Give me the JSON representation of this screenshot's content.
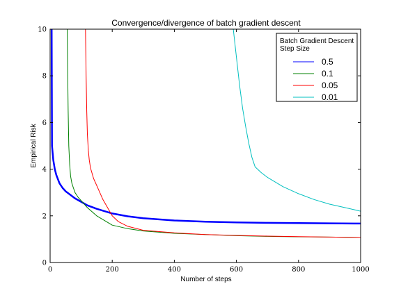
{
  "chart_data": {
    "type": "line",
    "title": "Convergence/divergence of batch gradient descent",
    "xlabel": "Number of steps",
    "ylabel": "Empirical Risk",
    "xlim": [
      0,
      1000
    ],
    "ylim": [
      0,
      10
    ],
    "x_ticks": [
      "0",
      "200",
      "400",
      "600",
      "800",
      "1000"
    ],
    "y_ticks": [
      "0",
      "2",
      "4",
      "6",
      "8",
      "10"
    ],
    "grid": false,
    "legend": {
      "title": "Batch Gradient Descent\nStep Size",
      "placement": "top-right"
    },
    "series": [
      {
        "name": "0.5",
        "color": "#0000ff",
        "x": [
          5,
          6,
          8,
          10,
          15,
          20,
          30,
          40,
          50,
          60,
          80,
          100,
          120,
          150,
          200,
          250,
          300,
          400,
          500,
          600,
          700,
          800,
          900,
          1000
        ],
        "y": [
          10,
          5.0,
          4.7,
          4.4,
          4.0,
          3.75,
          3.4,
          3.2,
          3.05,
          2.95,
          2.75,
          2.6,
          2.45,
          2.3,
          2.1,
          1.98,
          1.9,
          1.8,
          1.75,
          1.72,
          1.7,
          1.69,
          1.68,
          1.67
        ]
      },
      {
        "name": "0.1",
        "color": "#008000",
        "x": [
          55,
          58,
          60,
          63,
          66,
          70,
          75,
          80,
          90,
          100,
          120,
          150,
          200,
          250,
          300,
          400,
          500,
          600,
          700,
          800,
          900,
          1000
        ],
        "y": [
          10,
          6.5,
          5.0,
          4.2,
          3.7,
          3.4,
          3.2,
          3.0,
          2.8,
          2.65,
          2.35,
          2.0,
          1.6,
          1.45,
          1.35,
          1.25,
          1.2,
          1.15,
          1.12,
          1.1,
          1.09,
          1.07
        ]
      },
      {
        "name": "0.05",
        "color": "#ff0000",
        "x": [
          114,
          116,
          118,
          120,
          123,
          126,
          130,
          140,
          150,
          170,
          200,
          220,
          250,
          300,
          400,
          500,
          600,
          700,
          800,
          900,
          1000
        ],
        "y": [
          10,
          8.0,
          6.5,
          5.5,
          4.8,
          4.4,
          4.05,
          3.6,
          3.3,
          2.7,
          2.0,
          1.75,
          1.55,
          1.38,
          1.27,
          1.2,
          1.16,
          1.13,
          1.11,
          1.09,
          1.07
        ]
      },
      {
        "name": "0.01",
        "color": "#00bfbf",
        "x": [
          590,
          600,
          610,
          620,
          630,
          640,
          650,
          660,
          680,
          700,
          750,
          800,
          850,
          900,
          950,
          1000
        ],
        "y": [
          10,
          8.8,
          7.6,
          6.6,
          5.8,
          5.1,
          4.5,
          4.1,
          3.85,
          3.65,
          3.25,
          2.95,
          2.7,
          2.5,
          2.35,
          2.2
        ]
      }
    ]
  }
}
